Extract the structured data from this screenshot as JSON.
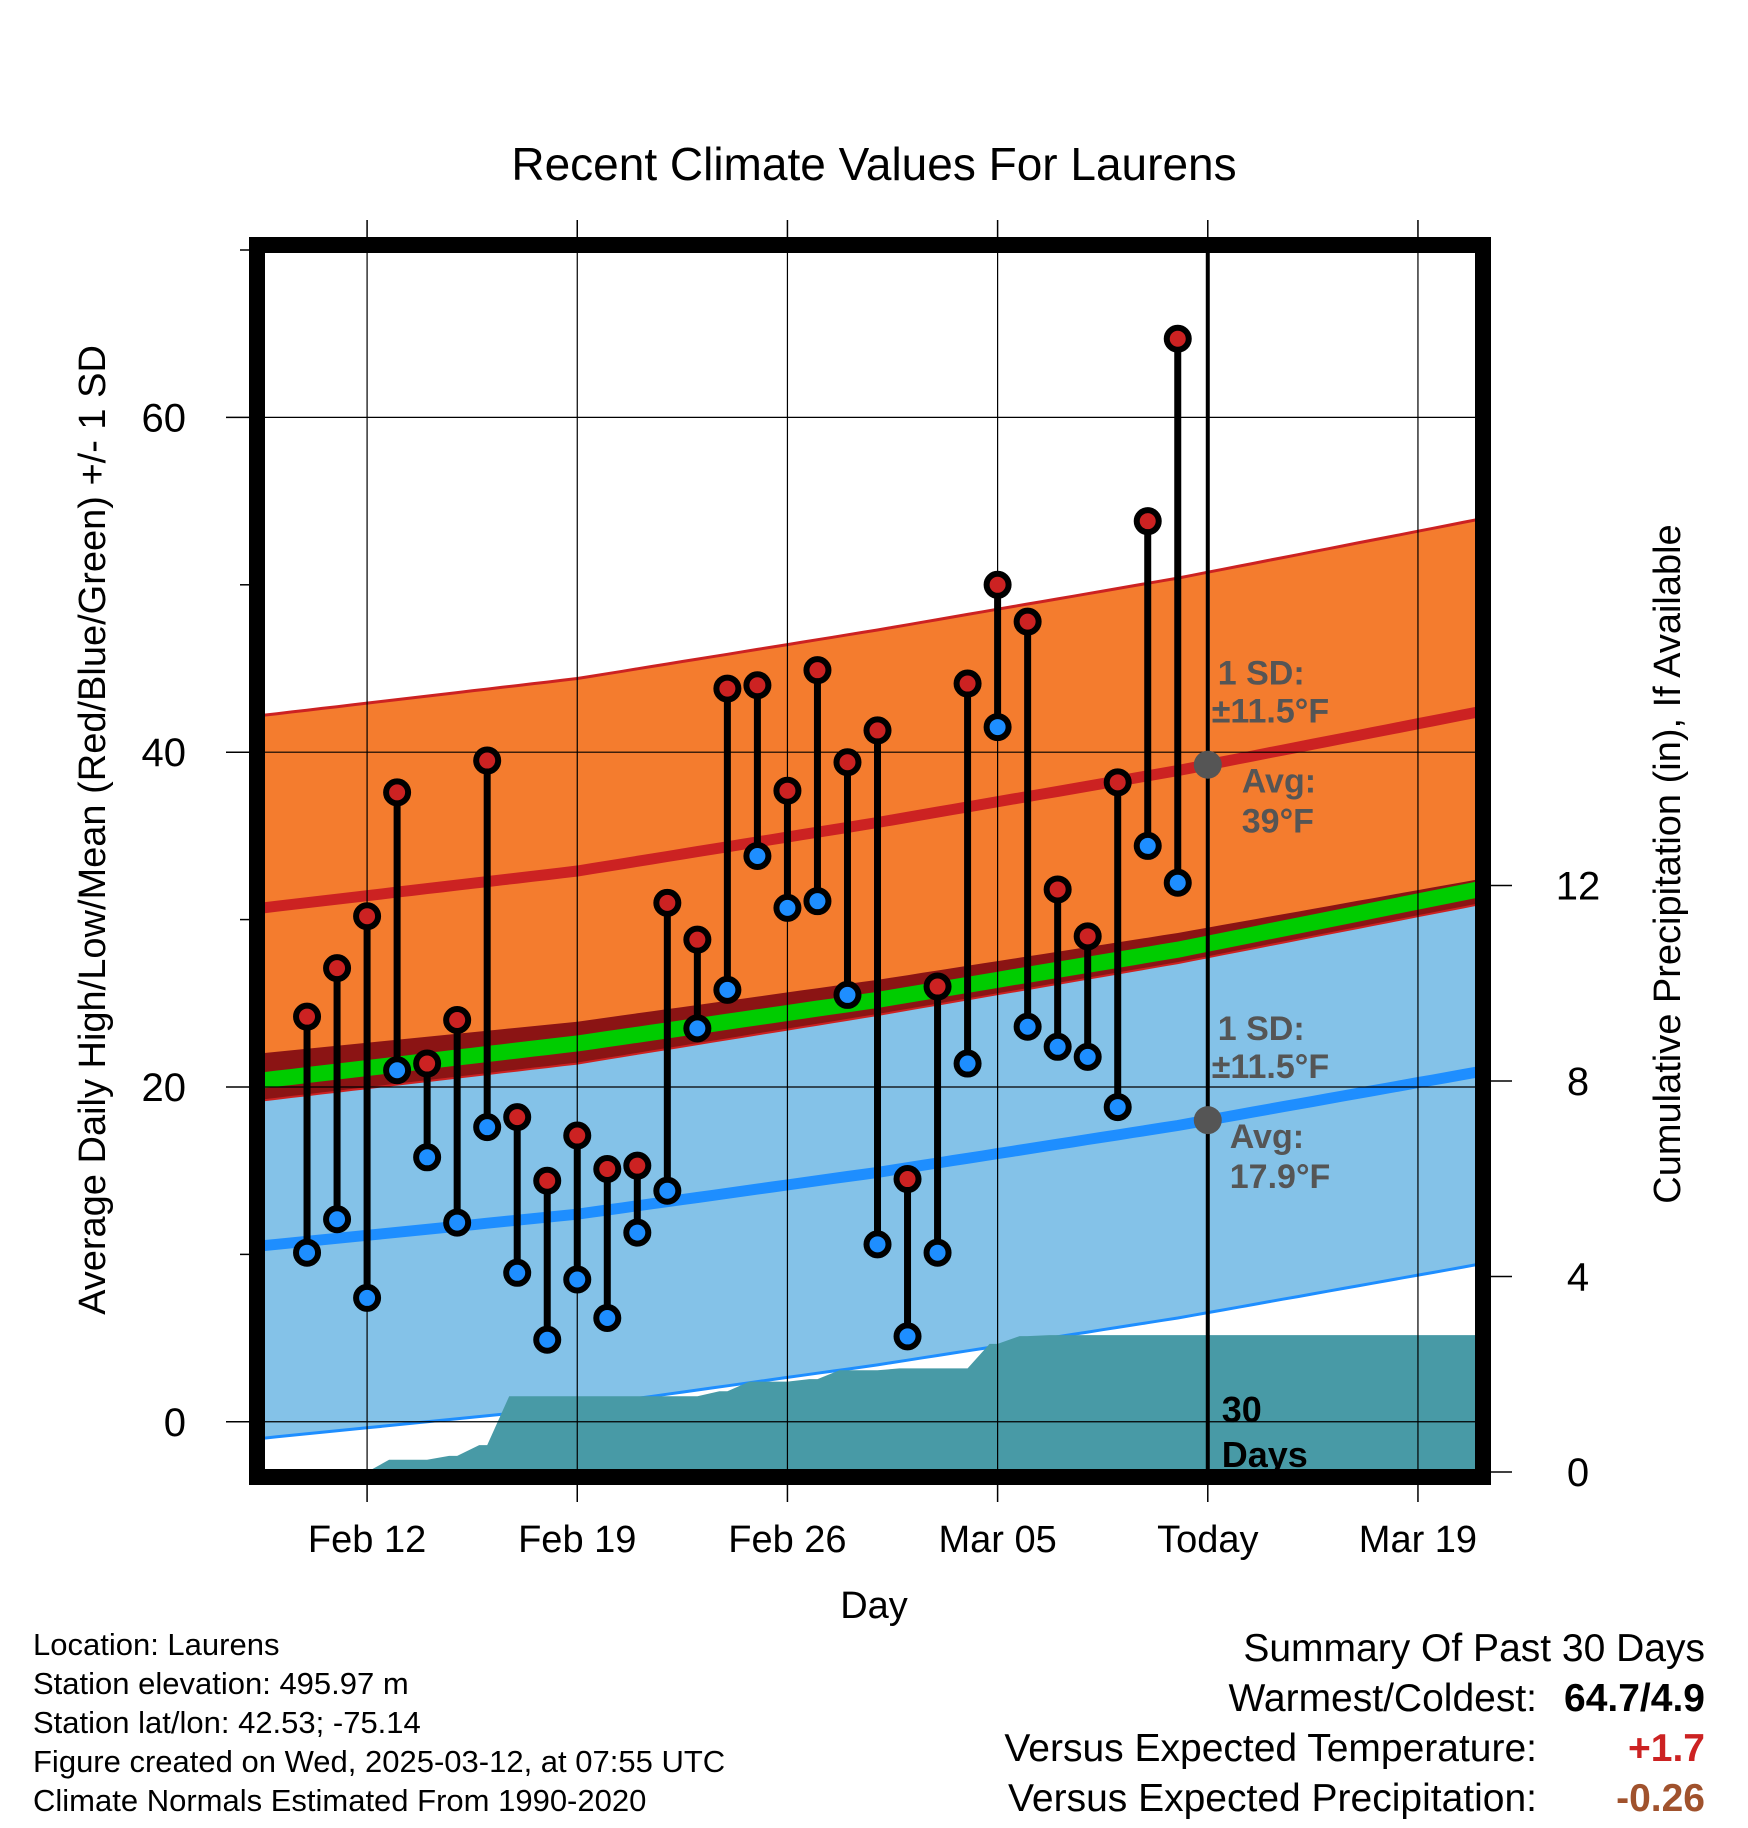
{
  "chart_data": {
    "type": "line",
    "title": "Recent Climate Values For Laurens",
    "xlabel": "Day",
    "ylabel": "Average Daily High/Low/Mean (Red/Blue/Green) +/- 1 SD",
    "y2label": "Cumulative Precipitation (in), If Available",
    "ylim": [
      -3,
      70
    ],
    "y2lim": [
      0,
      25
    ],
    "yticks": [
      0,
      20,
      40,
      60
    ],
    "y2ticks": [
      0,
      4,
      8,
      12
    ],
    "x_tick_labels": [
      "Feb 12",
      "Feb 19",
      "Feb 26",
      "Mar 05",
      "Today",
      "Mar 19"
    ],
    "x_tick_days": [
      3,
      10,
      17,
      24,
      31,
      38
    ],
    "xlim": [
      -0.5,
      40
    ],
    "today_day": 31,
    "grid": true,
    "observed_days": [
      1,
      2,
      3,
      4,
      5,
      6,
      7,
      8,
      9,
      10,
      11,
      12,
      13,
      14,
      15,
      16,
      17,
      18,
      19,
      20,
      21,
      22,
      23,
      24,
      25,
      26,
      27,
      28,
      29,
      30
    ],
    "observed_high": [
      24.2,
      27.1,
      30.2,
      37.6,
      21.4,
      24.0,
      39.5,
      18.2,
      14.4,
      17.1,
      15.1,
      15.3,
      31.0,
      28.8,
      43.8,
      44.0,
      37.7,
      44.9,
      39.4,
      41.3,
      14.5,
      26.0,
      44.1,
      50.0,
      47.8,
      31.8,
      29.0,
      38.2,
      53.8,
      64.7
    ],
    "observed_low": [
      10.1,
      12.1,
      7.4,
      21.0,
      15.8,
      11.9,
      17.6,
      8.9,
      4.9,
      8.5,
      6.2,
      11.3,
      13.8,
      23.5,
      25.8,
      33.8,
      30.7,
      31.1,
      25.5,
      10.6,
      5.1,
      10.1,
      21.4,
      41.5,
      23.6,
      22.4,
      21.8,
      18.8,
      34.4,
      32.2
    ],
    "normal_days": [
      0,
      10,
      20,
      30,
      40
    ],
    "normal_high": [
      30.8,
      32.9,
      35.8,
      38.9,
      42.4
    ],
    "normal_high_sd": 11.5,
    "normal_low": [
      10.6,
      12.4,
      14.9,
      17.7,
      20.9
    ],
    "normal_low_sd": 11.5,
    "normal_mean": [
      20.5,
      22.6,
      25.2,
      28.2,
      31.8
    ],
    "precip_days": [
      3,
      5,
      6,
      7,
      14,
      15,
      17,
      18,
      20,
      22,
      23,
      24,
      25,
      40
    ],
    "precip_cumulative": [
      0.25,
      0.33,
      0.55,
      1.55,
      1.65,
      1.85,
      1.9,
      2.08,
      2.12,
      2.12,
      2.62,
      2.78,
      2.8,
      2.82
    ],
    "annotations": {
      "high_sd_label": "1 SD:",
      "high_sd_value": "±11.5°F",
      "high_avg_label": "Avg:",
      "high_avg_value": "39°F",
      "low_sd_label": "1 SD:",
      "low_sd_value": "±11.5°F",
      "low_avg_label": "Avg:",
      "low_avg_value": "17.9°F",
      "window_count": "30",
      "window_unit": "Days"
    },
    "colors": {
      "high_band": "#F47C2E",
      "high_line": "#CC2222",
      "low_band": "#84C2E8",
      "low_line": "#1E8EFF",
      "mean_line": "#00CC00",
      "overlap": "#8B1414",
      "precip": "#489AA6",
      "high_marker": "#CC2222",
      "low_marker": "#1E8EFF",
      "annotation": "#555555"
    }
  },
  "info": {
    "location": "Location: Laurens",
    "elevation": "Station elevation: 495.97 m",
    "latlon": "Station lat/lon: 42.53; -75.14",
    "created": "Figure created on Wed, 2025-03-12, at 07:55 UTC",
    "normals": "Climate Normals Estimated From 1990-2020"
  },
  "summary": {
    "title": "Summary Of Past 30 Days",
    "warm_cold_label": "Warmest/Coldest:",
    "warm_cold_value": "64.7/4.9",
    "temp_label": "Versus Expected Temperature:",
    "temp_value": "+1.7",
    "temp_color": "#CC2222",
    "precip_label": "Versus Expected Precipitation:",
    "precip_value": "-0.26",
    "precip_color": "#A0522D"
  }
}
